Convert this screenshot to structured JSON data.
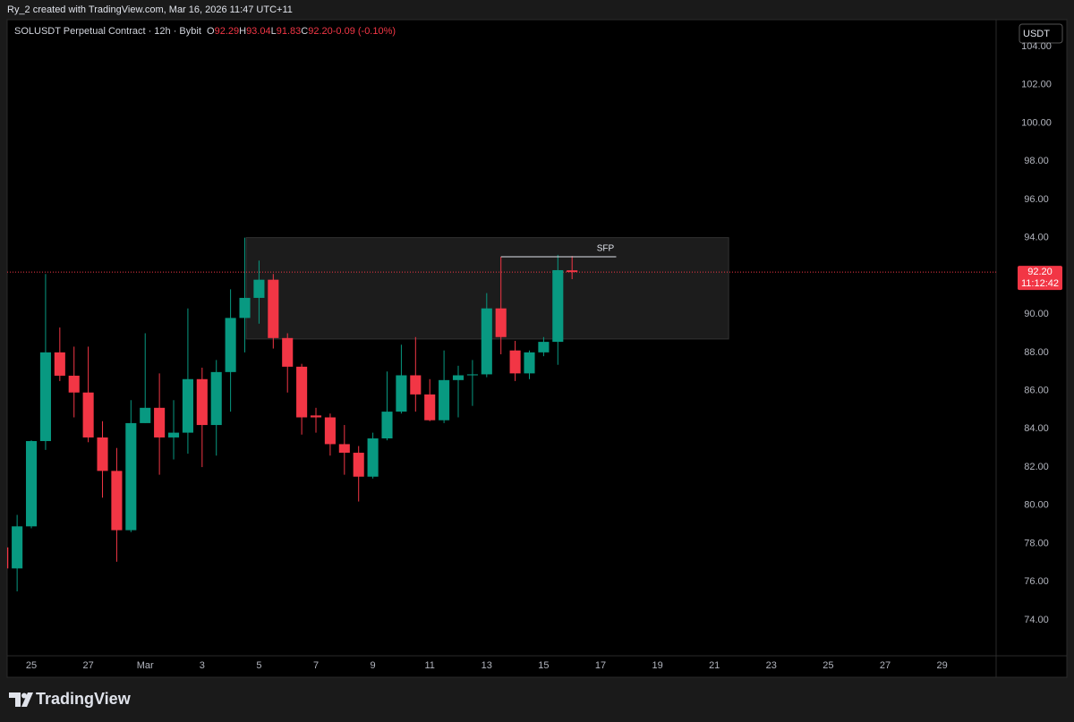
{
  "header": {
    "credit": "Ry_2 created with TradingView.com, Mar 16, 2026 11:47 UTC+11",
    "brand": "TradingView"
  },
  "chart_data": {
    "type": "candlestick",
    "title": "SOLUSDT Perpetual Contract · 12h · Bybit",
    "ohlc_legend": [
      {
        "key": "O",
        "text": "92.29"
      },
      {
        "key": "H",
        "text": "93.04"
      },
      {
        "key": "L",
        "text": "91.83"
      },
      {
        "key": "C",
        "text": "92.20"
      }
    ],
    "change": "-0.09 (-0.10%)",
    "currency": "USDT",
    "x": [
      -1,
      -0.5,
      0,
      0.5,
      1,
      1.5,
      2,
      2.5,
      3,
      3.5,
      4,
      4.5,
      5,
      5.5,
      6,
      6.5,
      7,
      7.5,
      8,
      8.5,
      9,
      9.5,
      10,
      10.5,
      11,
      11.5,
      12,
      12.5,
      13,
      13.5,
      14,
      14.5,
      15,
      15.5,
      16,
      16.5,
      17,
      17.5,
      18,
      18.5,
      19
    ],
    "open": [
      77.8,
      76.7,
      78.9,
      83.36,
      88.0,
      86.78,
      85.9,
      83.55,
      81.8,
      78.7,
      84.3,
      85.1,
      83.55,
      83.8,
      86.6,
      84.2,
      86.97,
      89.8,
      90.85,
      91.8,
      88.75,
      87.25,
      84.7,
      84.6,
      83.2,
      82.75,
      81.5,
      83.5,
      84.9,
      86.8,
      85.8,
      84.45,
      86.55,
      86.8,
      86.85,
      90.3,
      88.1,
      86.9,
      88.0,
      88.55,
      92.29
    ],
    "high": [
      78.3,
      79.5,
      83.4,
      92.1,
      89.3,
      88.3,
      88.3,
      84.4,
      83.0,
      85.5,
      89.0,
      86.9,
      85.5,
      90.3,
      87.2,
      87.6,
      91.3,
      94.0,
      92.8,
      92.1,
      89.0,
      87.4,
      85.1,
      84.8,
      84.2,
      83.1,
      83.8,
      87.0,
      88.4,
      88.8,
      86.6,
      88.1,
      87.3,
      87.6,
      91.1,
      93.0,
      88.6,
      88.1,
      88.8,
      93.1,
      93.04
    ],
    "low": [
      76.5,
      75.5,
      78.8,
      82.9,
      86.5,
      84.6,
      83.3,
      80.4,
      77.05,
      78.6,
      84.3,
      81.6,
      82.4,
      82.7,
      82.0,
      82.6,
      84.9,
      88.0,
      89.5,
      88.2,
      85.9,
      83.7,
      83.8,
      82.6,
      81.6,
      80.2,
      81.4,
      83.4,
      84.8,
      84.9,
      84.4,
      84.3,
      84.6,
      85.2,
      86.7,
      87.9,
      86.5,
      86.6,
      87.8,
      87.35,
      91.83
    ],
    "close": [
      76.7,
      78.9,
      83.36,
      88.0,
      86.78,
      85.9,
      83.55,
      81.8,
      78.7,
      84.3,
      85.1,
      83.55,
      83.8,
      86.6,
      84.2,
      86.97,
      89.8,
      90.85,
      91.8,
      88.75,
      87.25,
      84.6,
      84.6,
      83.2,
      82.75,
      81.5,
      83.5,
      84.9,
      86.8,
      85.8,
      84.45,
      86.55,
      86.8,
      86.85,
      90.3,
      88.8,
      86.9,
      88.0,
      88.55,
      92.3,
      92.2
    ],
    "up_color": "#089981",
    "down_color": "#f23645",
    "xlim": [
      -0.85,
      33.9
    ],
    "xticks": [
      {
        "value": 0,
        "label": "25"
      },
      {
        "value": 2,
        "label": "27"
      },
      {
        "value": 4,
        "label": "Mar"
      },
      {
        "value": 6,
        "label": "3"
      },
      {
        "value": 8,
        "label": "5"
      },
      {
        "value": 10,
        "label": "7"
      },
      {
        "value": 12,
        "label": "9"
      },
      {
        "value": 14,
        "label": "11"
      },
      {
        "value": 16,
        "label": "13"
      },
      {
        "value": 18,
        "label": "15"
      },
      {
        "value": 20,
        "label": "17"
      },
      {
        "value": 22,
        "label": "19"
      },
      {
        "value": 24,
        "label": "21"
      },
      {
        "value": 26,
        "label": "23"
      },
      {
        "value": 28,
        "label": "25"
      },
      {
        "value": 30,
        "label": "27"
      },
      {
        "value": 32,
        "label": "29"
      }
    ],
    "ylim": [
      72.13,
      105.4
    ],
    "yticks": [
      {
        "value": 74,
        "label": "74.00"
      },
      {
        "value": 76,
        "label": "76.00"
      },
      {
        "value": 78,
        "label": "78.00"
      },
      {
        "value": 80,
        "label": "80.00"
      },
      {
        "value": 82,
        "label": "82.00"
      },
      {
        "value": 84,
        "label": "84.00"
      },
      {
        "value": 86,
        "label": "86.00"
      },
      {
        "value": 88,
        "label": "88.00"
      },
      {
        "value": 90,
        "label": "90.00"
      },
      {
        "value": 92,
        "label": "92.00"
      },
      {
        "value": 94,
        "label": "94.00"
      },
      {
        "value": 96,
        "label": "96.00"
      },
      {
        "value": 98,
        "label": "98.00"
      },
      {
        "value": 100,
        "label": "100.00"
      },
      {
        "value": 102,
        "label": "102.00"
      },
      {
        "value": 104,
        "label": "104.00"
      }
    ],
    "grid": false,
    "last_price": {
      "value": 92.2,
      "label": "92.20"
    },
    "countdown": "11:12:42",
    "zone": {
      "x": [
        7.55,
        24.5
      ],
      "y": [
        88.7,
        94.0
      ]
    },
    "annotation": {
      "text": "SFP",
      "x": [
        16.5,
        20.55
      ],
      "y": 93.0
    }
  }
}
